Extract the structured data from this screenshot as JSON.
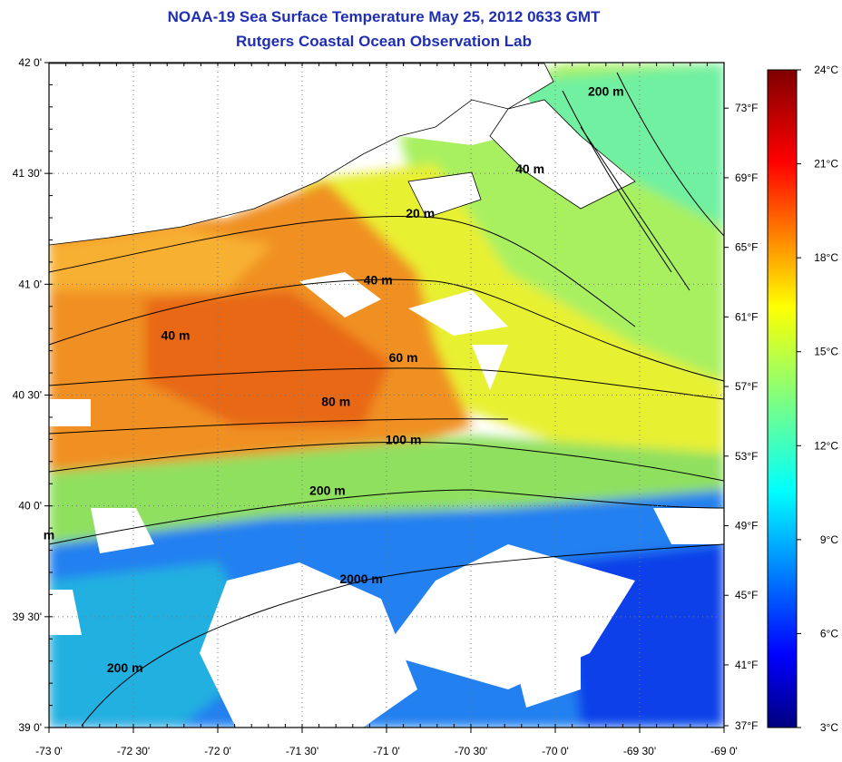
{
  "title": "NOAA-19 Sea Surface Temperature May 25, 2012 0633 GMT",
  "subtitle": "Rutgers Coastal Ocean Observation Lab",
  "map": {
    "lon_range": [
      -73.0,
      -69.0
    ],
    "lat_range": [
      39.0,
      42.0
    ],
    "lon_ticks": [
      {
        "value": -73.0,
        "label": "-73 0'"
      },
      {
        "value": -72.5,
        "label": "-72 30'"
      },
      {
        "value": -72.0,
        "label": "-72 0'"
      },
      {
        "value": -71.5,
        "label": "-71 30'"
      },
      {
        "value": -71.0,
        "label": "-71 0'"
      },
      {
        "value": -70.5,
        "label": "-70 30'"
      },
      {
        "value": -70.0,
        "label": "-70 0'"
      },
      {
        "value": -69.5,
        "label": "-69 30'"
      },
      {
        "value": -69.0,
        "label": "-69 0'"
      }
    ],
    "lat_ticks": [
      {
        "value": 42.0,
        "label": "42 0'"
      },
      {
        "value": 41.5,
        "label": "41 30'"
      },
      {
        "value": 41.0,
        "label": "41 0'"
      },
      {
        "value": 40.5,
        "label": "40 30'"
      },
      {
        "value": 40.0,
        "label": "40 0'"
      },
      {
        "value": 39.5,
        "label": "39 30'"
      },
      {
        "value": 39.0,
        "label": "39 0'"
      }
    ],
    "grid": "dotted",
    "fahrenheit_ticks": [
      {
        "value": 73,
        "label": "73°F"
      },
      {
        "value": 69,
        "label": "69°F"
      },
      {
        "value": 65,
        "label": "65°F"
      },
      {
        "value": 61,
        "label": "61°F"
      },
      {
        "value": 57,
        "label": "57°F"
      },
      {
        "value": 53,
        "label": "53°F"
      },
      {
        "value": 49,
        "label": "49°F"
      },
      {
        "value": 45,
        "label": "45°F"
      },
      {
        "value": 41,
        "label": "41°F"
      },
      {
        "value": 37,
        "label": "37°F"
      }
    ],
    "depth_contour_labels": [
      {
        "label": "200 m",
        "lon": -69.7,
        "lat": 41.85
      },
      {
        "label": "40 m",
        "lon": -70.15,
        "lat": 41.5
      },
      {
        "label": "20 m",
        "lon": -70.8,
        "lat": 41.3
      },
      {
        "label": "40 m",
        "lon": -71.05,
        "lat": 41.0
      },
      {
        "label": "40 m",
        "lon": -72.25,
        "lat": 40.75
      },
      {
        "label": "60 m",
        "lon": -70.9,
        "lat": 40.65
      },
      {
        "label": "80 m",
        "lon": -71.3,
        "lat": 40.45
      },
      {
        "label": "100 m",
        "lon": -70.9,
        "lat": 40.28
      },
      {
        "label": "200 m",
        "lon": -71.35,
        "lat": 40.05
      },
      {
        "label": "2000 m",
        "lon": -71.15,
        "lat": 39.65
      },
      {
        "label": "200 m",
        "lon": -72.55,
        "lat": 39.25
      },
      {
        "label": "m",
        "lon": -73.0,
        "lat": 39.85
      }
    ]
  },
  "colorbar": {
    "min": 3,
    "max": 24,
    "ticks": [
      {
        "value": 24,
        "label": "24°C"
      },
      {
        "value": 21,
        "label": "21°C"
      },
      {
        "value": 18,
        "label": "18°C"
      },
      {
        "value": 15,
        "label": "15°C"
      },
      {
        "value": 12,
        "label": "12°C"
      },
      {
        "value": 9,
        "label": "9°C"
      },
      {
        "value": 6,
        "label": "6°C"
      },
      {
        "value": 3,
        "label": "3°C"
      }
    ],
    "colors": [
      "#00007f",
      "#0000ff",
      "#007fff",
      "#00ffff",
      "#7fff7f",
      "#ffff00",
      "#ff7f00",
      "#ff0000",
      "#7f0000"
    ]
  }
}
